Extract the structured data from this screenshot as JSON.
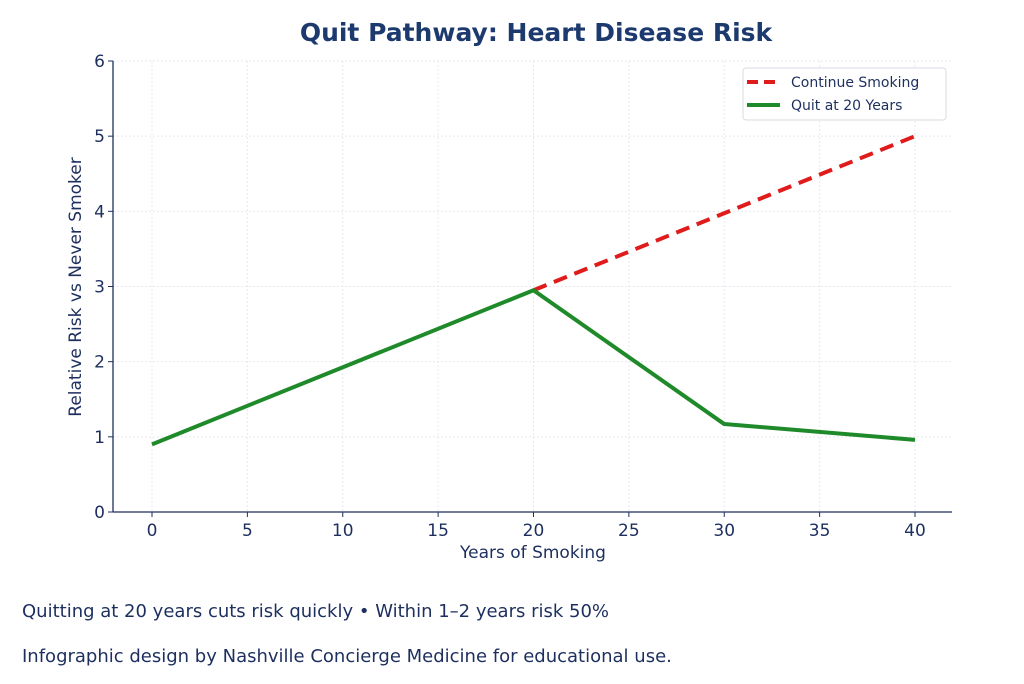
{
  "chart_data": {
    "type": "line",
    "title": "Quit Pathway: Heart Disease Risk",
    "xlabel": "Years of Smoking",
    "ylabel": "Relative Risk vs Never Smoker",
    "xlim": [
      -2,
      42
    ],
    "ylim": [
      0,
      6
    ],
    "xticks": [
      0,
      5,
      10,
      15,
      20,
      25,
      30,
      35,
      40
    ],
    "yticks": [
      0,
      1,
      2,
      3,
      4,
      5,
      6
    ],
    "grid": true,
    "legend_position": "top-right",
    "series": [
      {
        "name": "Continue Smoking",
        "color": "#e01b1b",
        "style": "dashed",
        "x": [
          20,
          40
        ],
        "y": [
          2.95,
          5.0
        ]
      },
      {
        "name": "Quit at 20 Years",
        "color": "#1f8a2a",
        "style": "solid",
        "x": [
          0,
          20,
          30,
          40
        ],
        "y": [
          0.9,
          2.95,
          1.17,
          0.96
        ]
      }
    ]
  },
  "footer": {
    "line1": "Quitting at 20 years cuts risk quickly • Within 1–2 years risk 50%",
    "line2": "Infographic design by Nashville Concierge Medicine for educational  use."
  }
}
